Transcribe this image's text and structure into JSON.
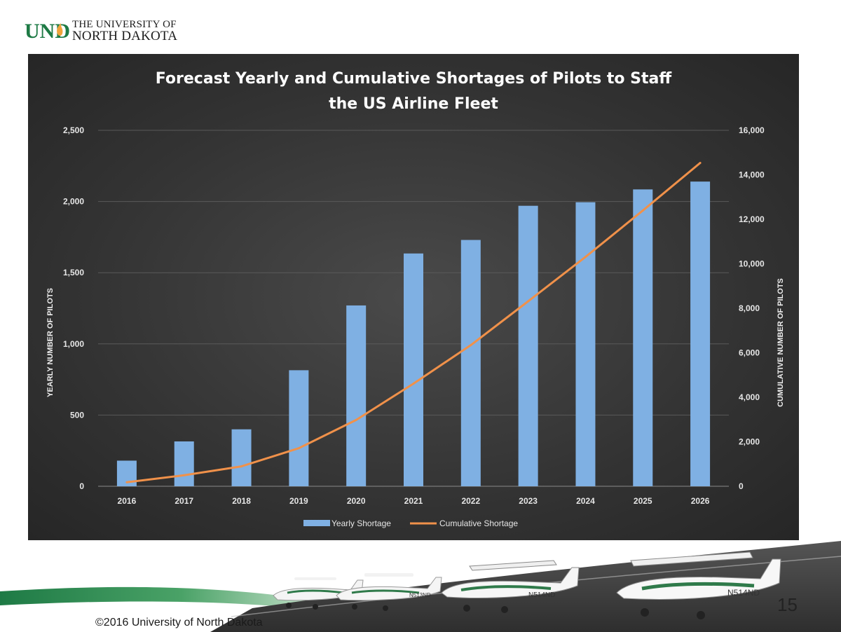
{
  "logo": {
    "mark_text": "UND",
    "line1": "THE UNIVERSITY OF",
    "line2": "NORTH DAKOTA",
    "colors": {
      "mark": "#1e7a45",
      "flame": "#f1a33a"
    }
  },
  "chart_data": {
    "type": "bar",
    "title_lines": [
      "Forecast Yearly and Cumulative Shortages of Pilots to Staff",
      "the US Airline Fleet"
    ],
    "categories": [
      "2016",
      "2017",
      "2018",
      "2019",
      "2020",
      "2021",
      "2022",
      "2023",
      "2024",
      "2025",
      "2026"
    ],
    "series": [
      {
        "name": "Yearly Shortage",
        "type": "bar",
        "axis": "left",
        "color": "#7fb0e3",
        "values": [
          180,
          315,
          400,
          815,
          1270,
          1635,
          1730,
          1970,
          1995,
          2085,
          2140
        ]
      },
      {
        "name": "Cumulative Shortage",
        "type": "line",
        "axis": "right",
        "color": "#f0914a",
        "values": [
          180,
          495,
          895,
          1710,
          2980,
          4615,
          6345,
          8315,
          10310,
          12395,
          14535
        ]
      }
    ],
    "ylabel_left": "YEARLY NUMBER OF PILOTS",
    "ylabel_right": "CUMULATIVE NUMBER OF PILOTS",
    "ylim_left": [
      0,
      2500
    ],
    "yticks_left": [
      "0",
      "500",
      "1,000",
      "1,500",
      "2,000",
      "2,500"
    ],
    "ylim_right": [
      0,
      16000
    ],
    "yticks_right": [
      "0",
      "2,000",
      "4,000",
      "6,000",
      "8,000",
      "10,000",
      "12,000",
      "14,000",
      "16,000"
    ],
    "grid": true,
    "legend_position": "bottom"
  },
  "footer": {
    "copyright": "©2016 University of North Dakota",
    "page_number": "15",
    "aircraft_tails": [
      "N513ND",
      "N514ND",
      "N514ND"
    ],
    "colors": {
      "green_band": "#1e7a45",
      "runway": "#3b3b3b"
    }
  }
}
